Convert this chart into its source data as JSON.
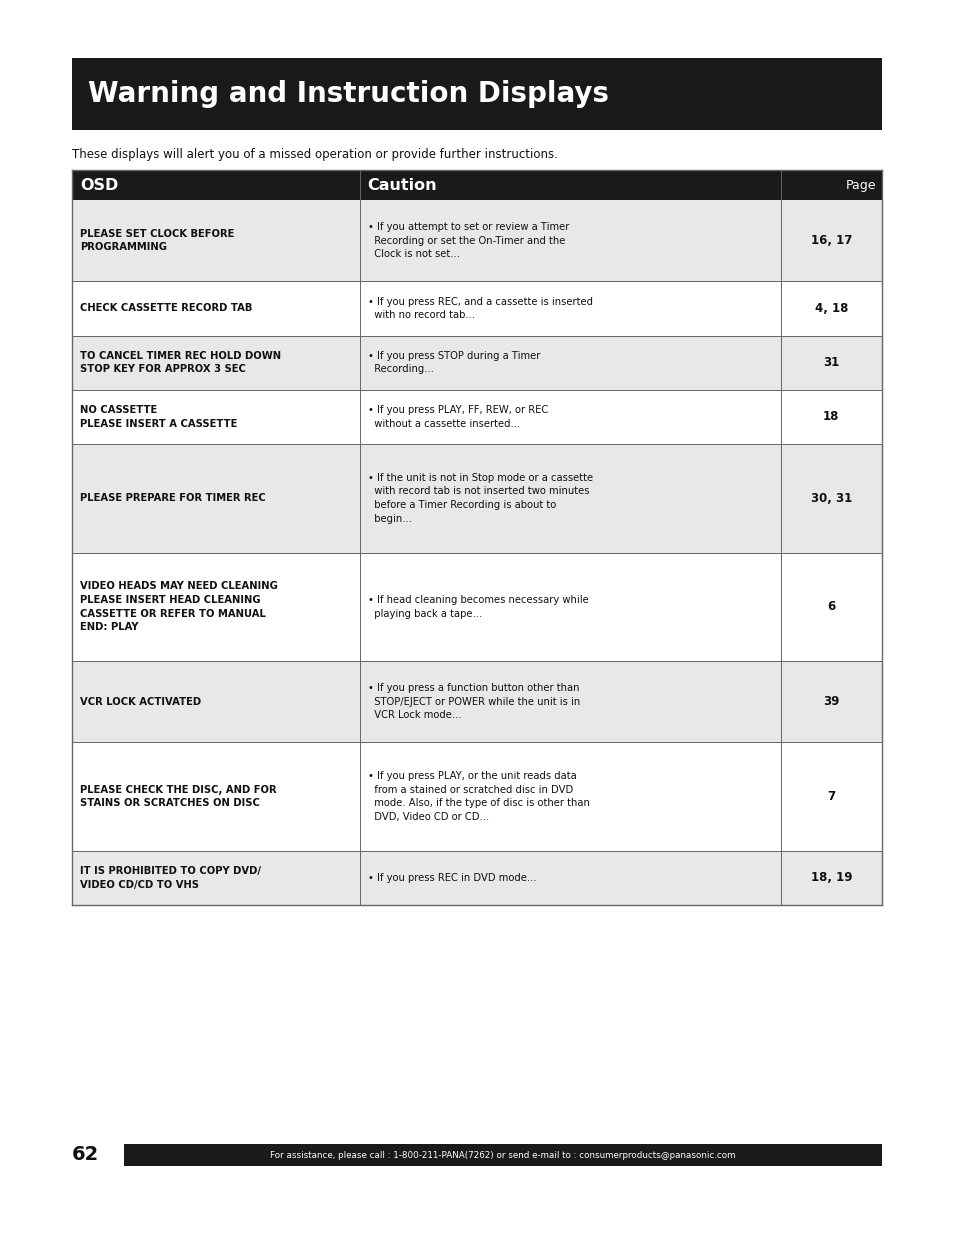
{
  "page_bg": "#ffffff",
  "title_bg": "#1a1a1a",
  "title_text": "Warning and Instruction Displays",
  "title_color": "#ffffff",
  "subtitle": "These displays will alert you of a missed operation or provide further instructions.",
  "header_bg": "#1a1a1a",
  "header_color": "#ffffff",
  "header_cols": [
    "OSD",
    "Caution",
    "Page"
  ],
  "row_bg_odd": "#e8e8e8",
  "row_bg_even": "#ffffff",
  "border_color": "#666666",
  "rows": [
    {
      "osd": "PLEASE SET CLOCK BEFORE\nPROGRAMMING",
      "caution": "• If you attempt to set or review a Timer\n  Recording or set the On-Timer and the\n  Clock is not set...",
      "page": "16, 17"
    },
    {
      "osd": "CHECK CASSETTE RECORD TAB",
      "caution": "• If you press REC, and a cassette is inserted\n  with no record tab...",
      "page": "4, 18"
    },
    {
      "osd": "TO CANCEL TIMER REC HOLD DOWN\nSTOP KEY FOR APPROX 3 SEC",
      "caution": "• If you press STOP during a Timer\n  Recording...",
      "page": "31"
    },
    {
      "osd": "NO CASSETTE\nPLEASE INSERT A CASSETTE",
      "caution": "• If you press PLAY, FF, REW, or REC\n  without a cassette inserted...",
      "page": "18"
    },
    {
      "osd": "PLEASE PREPARE FOR TIMER REC",
      "caution": "• If the unit is not in Stop mode or a cassette\n  with record tab is not inserted two minutes\n  before a Timer Recording is about to\n  begin...",
      "page": "30, 31"
    },
    {
      "osd": "VIDEO HEADS MAY NEED CLEANING\nPLEASE INSERT HEAD CLEANING\nCASSETTE OR REFER TO MANUAL\nEND: PLAY",
      "caution": "• If head cleaning becomes necessary while\n  playing back a tape...",
      "page": "6"
    },
    {
      "osd": "VCR LOCK ACTIVATED",
      "caution": "• If you press a function button other than\n  STOP/EJECT or POWER while the unit is in\n  VCR Lock mode...",
      "page": "39"
    },
    {
      "osd": "PLEASE CHECK THE DISC, AND FOR\nSTAINS OR SCRATCHES ON DISC",
      "caution": "• If you press PLAY, or the unit reads data\n  from a stained or scratched disc in DVD\n  mode. Also, if the type of disc is other than\n  DVD, Video CD or CD...",
      "page": "7"
    },
    {
      "osd": "IT IS PROHIBITED TO COPY DVD/\nVIDEO CD/CD TO VHS",
      "caution": "• If you press REC in DVD mode...",
      "page": "18, 19"
    }
  ],
  "footer_text": "For assistance, please call : 1-800-211-PANA(7262) or send e-mail to : consumerproducts@panasonic.com",
  "page_number": "62"
}
